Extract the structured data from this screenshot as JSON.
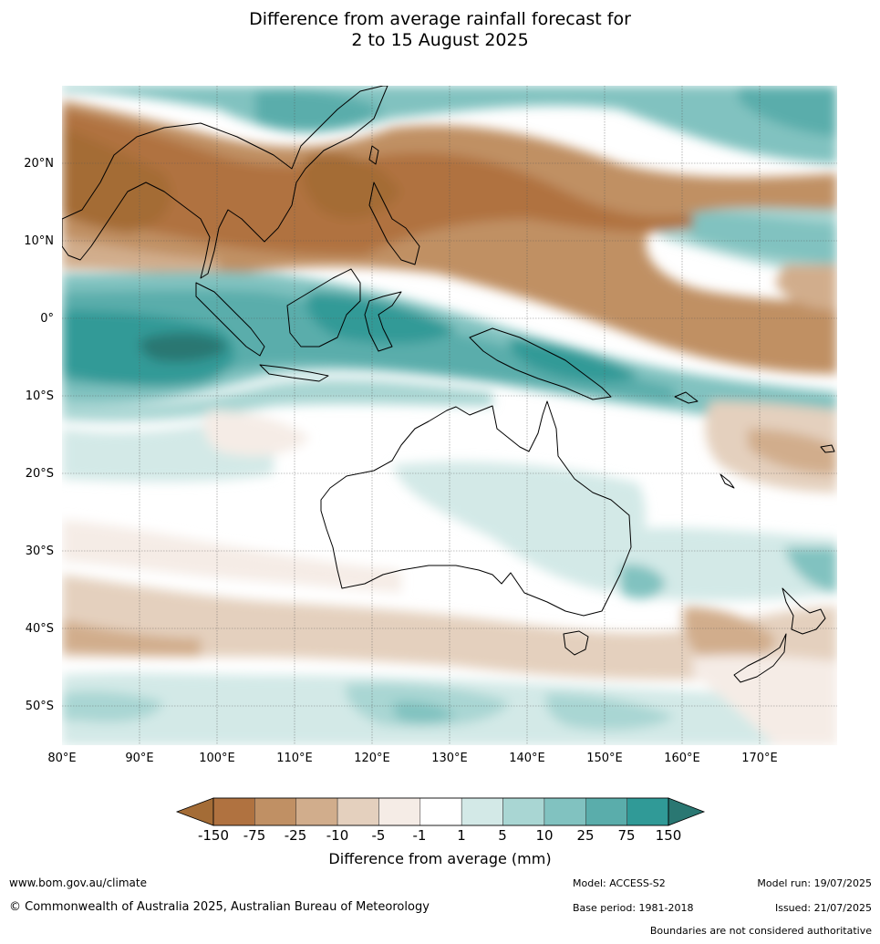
{
  "title": {
    "line1": "Difference from average rainfall forecast for",
    "line2": "2 to 15 August 2025"
  },
  "map": {
    "lon_labels": [
      "80°E",
      "90°E",
      "100°E",
      "110°E",
      "120°E",
      "130°E",
      "140°E",
      "150°E",
      "160°E",
      "170°E"
    ],
    "lat_labels": [
      "20°N",
      "10°N",
      "0°",
      "10°S",
      "20°S",
      "30°S",
      "40°S",
      "50°S"
    ],
    "lon_values": [
      80,
      90,
      100,
      110,
      120,
      130,
      140,
      150,
      160,
      170
    ],
    "lat_values": [
      20,
      10,
      0,
      -10,
      -20,
      -30,
      -40,
      -50
    ],
    "lon_range": [
      80,
      180
    ],
    "lat_range": [
      -55,
      30
    ]
  },
  "colorbar": {
    "label": "Difference from average (mm)",
    "ticks": [
      "-150",
      "-75",
      "-25",
      "-10",
      "-5",
      "-1",
      "1",
      "5",
      "10",
      "25",
      "75",
      "150"
    ],
    "colors": [
      "#a46c36",
      "#b07240",
      "#c09064",
      "#d1ad8c",
      "#e4d0be",
      "#f5ece6",
      "#ffffff",
      "#d3e9e7",
      "#a9d6d3",
      "#81c2c0",
      "#5aadab",
      "#309a97",
      "#2a7772"
    ]
  },
  "footer": {
    "website": "www.bom.gov.au/climate",
    "copyright": "© Commonwealth of Australia 2025, Australian Bureau of Meteorology",
    "model": "Model: ACCESS-S2",
    "base_period": "Base period: 1981-2018",
    "model_run": "Model run: 19/07/2025",
    "issued": "Issued: 21/07/2025",
    "boundaries": "Boundaries are not considered authoritative"
  }
}
